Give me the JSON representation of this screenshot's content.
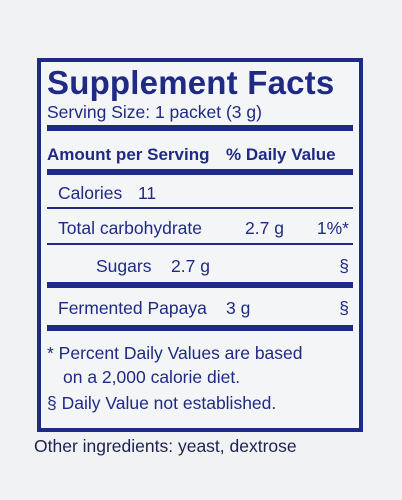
{
  "title": "Supplement Facts",
  "serving_size": "Serving Size: 1 packet (3 g)",
  "header": {
    "amount_per_serving": "Amount per Serving",
    "daily_value": "% Daily Value"
  },
  "rows": [
    {
      "name": "Calories",
      "amount": "11"
    },
    {
      "name": "Total carbohydrate",
      "amount": "2.7 g",
      "dv": "1%*"
    },
    {
      "name": "Sugars",
      "amount": "2.7 g",
      "dv": "§"
    },
    {
      "name": "Fermented Papaya",
      "amount": "3 g",
      "dv": "§"
    }
  ],
  "footnotes": [
    "*  Percent Daily Values are based",
    "on a 2,000 calorie diet.",
    "§ Daily Value not established."
  ],
  "other_ingredients": "Other ingredients: yeast, dextrose"
}
